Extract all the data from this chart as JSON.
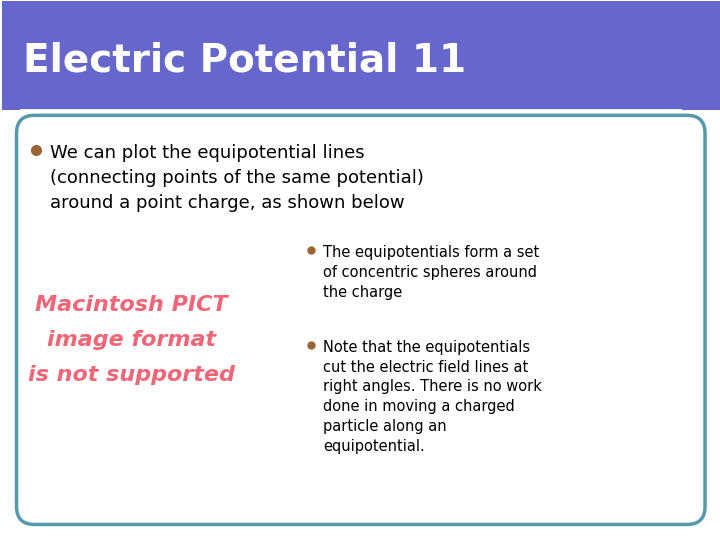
{
  "title": "Electric Potential 11",
  "title_bg_color": "#6666cc",
  "title_text_color": "#ffffff",
  "slide_bg_color": "#ffffff",
  "border_color": "#5599aa",
  "bullet_color": "#996633",
  "bullet1_text": "We can plot the equipotential lines\n(connecting points of the same potential)\naround a point charge, as shown below",
  "pict_line1": "Macintosh PICT",
  "pict_line2": "image format",
  "pict_line3": "is not supported",
  "pict_color": "#ee6677",
  "sub_bullet1_title": "The equipotentials form a set of concentric spheres around the charge",
  "sub_bullet2_title": "Note that the equipotentials cut the electric field lines at right angles. There is no work done in moving a charged particle along an equipotential.",
  "sub_bullet_color": "#996633"
}
